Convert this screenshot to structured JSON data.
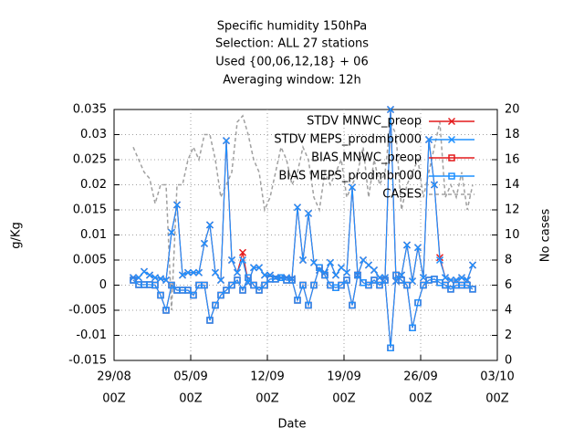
{
  "chart_data": {
    "type": "line",
    "title": [
      "Specific humidity 150hPa",
      "Selection: ALL      27 stations",
      "Used {00,06,12,18} + 06",
      "Averaging window: 12h"
    ],
    "xlabel": "Date",
    "ylabel": "g/Kg",
    "y2label": "No cases",
    "x": [
      "30/08 18Z",
      "31/08 06Z",
      "31/08 18Z",
      "01/09 06Z",
      "01/09 18Z",
      "02/09 06Z",
      "02/09 18Z",
      "03/09 06Z",
      "03/09 18Z",
      "04/09 06Z",
      "04/09 18Z",
      "05/09 06Z",
      "05/09 18Z",
      "06/09 06Z",
      "06/09 18Z",
      "07/09 06Z",
      "07/09 18Z",
      "08/09 06Z",
      "08/09 18Z",
      "09/09 06Z",
      "09/09 18Z",
      "10/09 06Z",
      "10/09 18Z",
      "11/09 06Z",
      "11/09 18Z",
      "12/09 06Z",
      "12/09 18Z",
      "13/09 06Z",
      "13/09 18Z",
      "14/09 06Z",
      "14/09 18Z",
      "15/09 06Z",
      "15/09 18Z",
      "16/09 06Z",
      "16/09 18Z",
      "17/09 06Z",
      "17/09 18Z",
      "18/09 06Z",
      "18/09 18Z",
      "19/09 06Z",
      "19/09 18Z",
      "20/09 06Z",
      "20/09 18Z",
      "21/09 06Z",
      "21/09 18Z",
      "22/09 06Z",
      "22/09 18Z",
      "23/09 06Z",
      "23/09 18Z",
      "24/09 06Z",
      "24/09 18Z",
      "25/09 06Z",
      "25/09 18Z",
      "26/09 06Z",
      "26/09 18Z",
      "27/09 06Z",
      "27/09 18Z",
      "28/09 06Z",
      "28/09 18Z",
      "29/09 06Z",
      "29/09 18Z",
      "30/09 06Z",
      "30/09 18Z"
    ],
    "xlim": [
      "29/08 00Z",
      "03/10 00Z"
    ],
    "xticks": [
      {
        "value": "29/08 00Z",
        "label": [
          "29/08",
          "00Z"
        ]
      },
      {
        "value": "05/09 00Z",
        "label": [
          "05/09",
          "00Z"
        ]
      },
      {
        "value": "12/09 00Z",
        "label": [
          "12/09",
          "00Z"
        ]
      },
      {
        "value": "19/09 00Z",
        "label": [
          "19/09",
          "00Z"
        ]
      },
      {
        "value": "26/09 00Z",
        "label": [
          "26/09",
          "00Z"
        ]
      },
      {
        "value": "03/10 00Z",
        "label": [
          "03/10",
          "00Z"
        ]
      }
    ],
    "ylim": [
      -0.015,
      0.035
    ],
    "yticks": [
      -0.015,
      -0.01,
      -0.005,
      0,
      0.005,
      0.01,
      0.015,
      0.02,
      0.025,
      0.03,
      0.035
    ],
    "y2lim": [
      0,
      20
    ],
    "y2ticks": [
      0,
      2,
      4,
      6,
      8,
      10,
      12,
      14,
      16,
      18,
      20
    ],
    "grid": true,
    "legend": "upper right",
    "series": [
      {
        "name": "STDV MNWC_preop",
        "color": "#e41a1c",
        "marker": "x",
        "dashed": false,
        "values": [
          0.0015,
          0.0015,
          0.0027,
          0.002,
          0.0015,
          0.0013,
          0.001,
          0.0105,
          0.016,
          0.002,
          0.0025,
          0.0025,
          0.0025,
          0.0083,
          0.012,
          0.0025,
          0.001,
          0.0288,
          0.005,
          0.0025,
          0.0065,
          0.0005,
          0.0035,
          0.0035,
          0.002,
          0.002,
          0.0015,
          0.0015,
          0.0015,
          0.0013,
          0.0155,
          0.005,
          0.0143,
          0.0045,
          0.003,
          0.0025,
          0.0045,
          0.002,
          0.0035,
          0.0025,
          0.0195,
          0.002,
          0.005,
          0.004,
          0.003,
          0.0015,
          0.0015,
          0.035,
          0.0008,
          0.002,
          0.008,
          0.0008,
          0.0075,
          0.0015,
          0.029,
          0.02,
          0.0055,
          0.0015,
          0.001,
          0.001,
          0.0015,
          0.001,
          0.004
        ]
      },
      {
        "name": "STDV MEPS_prodmbr000",
        "color": "#1e90ff",
        "marker": "x",
        "dashed": false,
        "values": [
          0.0015,
          0.0015,
          0.0027,
          0.002,
          0.0015,
          0.0013,
          0.001,
          0.0105,
          0.016,
          0.002,
          0.0025,
          0.0025,
          0.0025,
          0.0083,
          0.012,
          0.0025,
          0.001,
          0.0288,
          0.005,
          0.0025,
          0.005,
          0.0005,
          0.0035,
          0.0035,
          0.002,
          0.002,
          0.0015,
          0.0015,
          0.0015,
          0.0013,
          0.0155,
          0.005,
          0.0143,
          0.0045,
          0.003,
          0.0025,
          0.0045,
          0.002,
          0.0035,
          0.0025,
          0.0195,
          0.002,
          0.005,
          0.004,
          0.003,
          0.0015,
          0.0015,
          0.035,
          0.0008,
          0.002,
          0.008,
          0.0008,
          0.0075,
          0.0015,
          0.029,
          0.02,
          0.005,
          0.0015,
          0.001,
          0.001,
          0.0015,
          0.001,
          0.004
        ]
      },
      {
        "name": "BIAS MNWC_preop",
        "color": "#e41a1c",
        "marker": "square",
        "dashed": false,
        "values": [
          0.001,
          0.0001,
          0.0001,
          0.0001,
          0,
          -0.002,
          -0.005,
          0,
          -0.001,
          -0.001,
          -0.001,
          -0.002,
          0,
          0,
          -0.007,
          -0.004,
          -0.002,
          -0.001,
          0,
          0.001,
          -0.001,
          0.0015,
          0,
          -0.001,
          0,
          0.0012,
          0.0012,
          0.0015,
          0.001,
          0.001,
          -0.003,
          0,
          -0.004,
          0,
          0.0035,
          0.002,
          0,
          -0.0005,
          0,
          0.001,
          -0.004,
          0.002,
          0.0005,
          0,
          0.001,
          0,
          0.001,
          -0.0125,
          0.002,
          0.001,
          0,
          -0.0085,
          -0.0035,
          0,
          0.001,
          0.0012,
          0.0005,
          0,
          -0.0008,
          0,
          0,
          0,
          -0.0008
        ]
      },
      {
        "name": "BIAS MEPS_prodmbr000",
        "color": "#1e90ff",
        "marker": "square",
        "dashed": false,
        "values": [
          0.001,
          0.0001,
          0.0001,
          0.0001,
          0,
          -0.002,
          -0.005,
          0,
          -0.001,
          -0.001,
          -0.001,
          -0.002,
          0,
          0,
          -0.007,
          -0.004,
          -0.002,
          -0.001,
          0,
          0.001,
          -0.001,
          0.0015,
          0,
          -0.001,
          0,
          0.0012,
          0.0012,
          0.0015,
          0.001,
          0.001,
          -0.003,
          0,
          -0.004,
          0,
          0.0035,
          0.002,
          0,
          -0.0005,
          0,
          0.001,
          -0.004,
          0.002,
          0.0005,
          0,
          0.001,
          0,
          0.001,
          -0.0125,
          0.002,
          0.001,
          0,
          -0.0085,
          -0.0035,
          0,
          0.001,
          0.0012,
          0.0005,
          0,
          -0.0008,
          0,
          0,
          0,
          -0.0008
        ]
      },
      {
        "name": "CASES",
        "color": "#a0a0a0",
        "marker": "none",
        "dashed": true,
        "axis": "y2",
        "values": [
          17,
          16,
          15,
          14.5,
          12.5,
          14,
          14,
          4,
          14,
          14,
          16,
          17,
          16,
          18,
          18,
          16,
          13,
          14,
          15,
          19,
          19.5,
          18,
          16,
          15,
          12,
          13,
          15,
          17,
          16,
          14,
          15,
          17,
          16,
          13,
          12,
          15,
          14,
          15,
          16,
          13,
          14,
          15,
          17,
          13,
          16,
          14,
          15,
          19,
          18,
          12,
          14,
          15,
          16,
          13,
          15,
          17,
          19,
          13,
          14,
          13,
          15,
          12,
          14
        ]
      }
    ]
  }
}
